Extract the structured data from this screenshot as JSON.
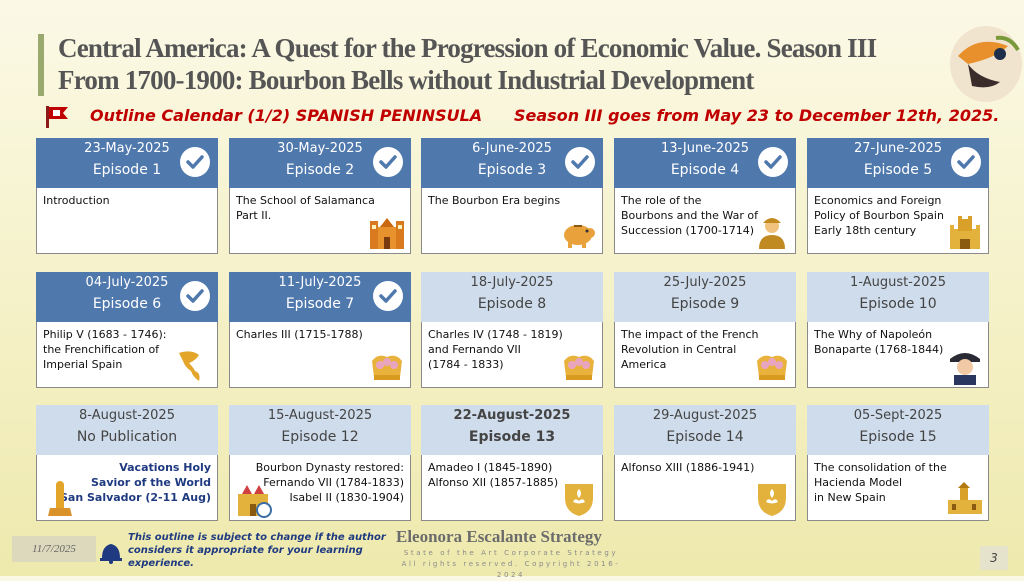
{
  "title": {
    "line1": "Central America:  A Quest for the Progression of  Economic Value. Season III",
    "line2": "From 1700-1900: Bourbon Bells without Industrial Development"
  },
  "subtitle": {
    "left": "Outline Calendar (1/2) SPANISH PENINSULA",
    "right": "Season III goes from May 23 to December 12th, 2025."
  },
  "episodes": [
    {
      "date": "23-May-2025",
      "episode": "Episode 1",
      "status": "done",
      "text": [
        "Introduction"
      ],
      "icon": "none"
    },
    {
      "date": "30-May-2025",
      "episode": "Episode 2",
      "status": "done",
      "text": [
        "The School of Salamanca",
        "Part II."
      ],
      "icon": "cathedral-icon"
    },
    {
      "date": "6-June-2025",
      "episode": "Episode 3",
      "status": "done",
      "text": [
        "The Bourbon Era begins"
      ],
      "icon": "piggy-bank-icon"
    },
    {
      "date": "13-June-2025",
      "episode": "Episode 4",
      "status": "done",
      "text": [
        "The role of the",
        "Bourbons and the War of",
        "Succession (1700-1714)"
      ],
      "icon": "soldier-icon"
    },
    {
      "date": "27-June-2025",
      "episode": "Episode 5",
      "status": "done",
      "text": [
        "Economics and Foreign",
        "Policy of Bourbon Spain",
        "Early 18th century"
      ],
      "icon": "castle-icon"
    },
    {
      "date": "04-July-2025",
      "episode": "Episode 6",
      "status": "done",
      "text": [
        "Philip V (1683 - 1746):",
        "the Frenchification of",
        "Imperial Spain"
      ],
      "icon": "americas-map-icon"
    },
    {
      "date": "11-July-2025",
      "episode": "Episode 7",
      "status": "done",
      "text": [
        "Charles III (1715-1788)"
      ],
      "icon": "crown-icon"
    },
    {
      "date": "18-July-2025",
      "episode": "Episode 8",
      "status": "pending",
      "text": [
        "Charles IV (1748 - 1819)",
        "and Fernando VII",
        "(1784 - 1833)"
      ],
      "icon": "crown-icon"
    },
    {
      "date": "25-July-2025",
      "episode": "Episode 9",
      "status": "pending",
      "text": [
        "The impact of the French",
        "Revolution in Central",
        "America"
      ],
      "icon": "crown-icon"
    },
    {
      "date": "1-August-2025",
      "episode": "Episode 10",
      "status": "pending",
      "text": [
        "The Why of Napoleón",
        "Bonaparte (1768-1844)"
      ],
      "icon": "napoleon-icon"
    },
    {
      "date": "8-August-2025",
      "episode": "No Publication",
      "status": "pending",
      "text": [
        "Vacations Holy",
        "Savior of the World",
        "San Salvador (2-11 Aug)"
      ],
      "icon": "monument-icon"
    },
    {
      "date": "15-August-2025",
      "episode": "Episode 12",
      "status": "pending",
      "text": [
        "Bourbon Dynasty restored:",
        "Fernando VII (1784-1833)",
        "Isabel II (1830-1904)"
      ],
      "icon": "palace-icon"
    },
    {
      "date": "22-August-2025",
      "episode": "Episode 13",
      "status": "pending",
      "text": [
        "Amadeo I (1845-1890)",
        "Alfonso XII (1857-1885)"
      ],
      "icon": "fleur-de-lis-shield-icon"
    },
    {
      "date": "29-August-2025",
      "episode": "Episode 14",
      "status": "pending",
      "text": [
        "Alfonso XIII (1886-1941)"
      ],
      "icon": "fleur-de-lis-shield-icon"
    },
    {
      "date": "05-Sept-2025",
      "episode": "Episode 15",
      "status": "pending",
      "text": [
        "The consolidation of the",
        "Hacienda Model",
        "in New Spain"
      ],
      "icon": "hacienda-icon"
    }
  ],
  "footer": {
    "date": "11/7/2025",
    "note": "This outline is subject to change if the author considers it appropriate for your learning experience.",
    "brand": "Eleonora Escalante Strategy",
    "brand_line1": "State of the Art Corporate Strategy",
    "brand_line2": "All rights reserved. Copyright 2016-2024",
    "page": "3"
  },
  "colors": {
    "done_header": "#4f78ad",
    "pending_header": "#cfdceb",
    "accent_red": "#c00000",
    "note_blue": "#1f3a80"
  }
}
